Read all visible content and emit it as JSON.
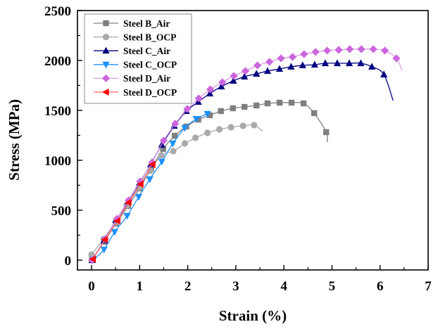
{
  "chart_data": {
    "type": "line",
    "title": "",
    "xlabel": "Strain (%)",
    "ylabel": "Stress (MPa)",
    "xlim": [
      -0.3,
      7
    ],
    "ylim": [
      -100,
      2500
    ],
    "xticks": [
      0,
      1,
      2,
      3,
      4,
      5,
      6,
      7
    ],
    "yticks": [
      0,
      500,
      1000,
      1500,
      2000,
      2500
    ],
    "xtick_labels": [
      "0",
      "1",
      "2",
      "3",
      "4",
      "5",
      "6",
      "7"
    ],
    "ytick_labels": [
      "0",
      "500",
      "1000",
      "1500",
      "2000",
      "2500"
    ],
    "grid": false,
    "legend_position": "top-left",
    "series": [
      {
        "name": "Steel B_Air",
        "color": "#7f7f7f",
        "line_color": "#7f7f7f",
        "marker": "square",
        "x": [
          0.01,
          0.26,
          0.51,
          0.76,
          1.0,
          1.24,
          1.49,
          1.73,
          1.97,
          2.22,
          2.46,
          2.69,
          2.94,
          3.18,
          3.43,
          3.66,
          3.91,
          4.16,
          4.41,
          4.63,
          4.88
        ],
        "y": [
          7,
          183,
          366,
          542,
          718,
          915,
          1113,
          1246,
          1338,
          1408,
          1451,
          1493,
          1521,
          1535,
          1549,
          1570,
          1577,
          1577,
          1570,
          1472,
          1282
        ],
        "end": [
          4.9,
          1183
        ]
      },
      {
        "name": "Steel B_OCP",
        "color": "#aaaaaa",
        "line_color": "#aaaaaa",
        "marker": "circle",
        "x": [
          0.0,
          0.25,
          0.5,
          0.73,
          0.98,
          1.22,
          1.45,
          1.7,
          1.94,
          2.16,
          2.41,
          2.66,
          2.9,
          3.15,
          3.38
        ],
        "y": [
          56,
          211,
          380,
          549,
          725,
          894,
          1049,
          1092,
          1169,
          1225,
          1275,
          1310,
          1331,
          1345,
          1352
        ],
        "end": [
          3.56,
          1289
        ]
      },
      {
        "name": "Steel C_Air",
        "color": "#000080",
        "line_color": "#000080",
        "marker": "triangle-up",
        "x": [
          0.01,
          0.26,
          0.51,
          0.76,
          1.0,
          1.23,
          1.46,
          1.72,
          1.97,
          2.22,
          2.46,
          2.7,
          2.95,
          3.18,
          3.43,
          3.66,
          3.91,
          4.15,
          4.39,
          4.64,
          4.86,
          5.11,
          5.36,
          5.6,
          5.83,
          6.08
        ],
        "y": [
          0,
          197,
          401,
          585,
          775,
          958,
          1155,
          1345,
          1493,
          1585,
          1669,
          1739,
          1796,
          1838,
          1866,
          1894,
          1915,
          1937,
          1951,
          1958,
          1972,
          1972,
          1972,
          1972,
          1937,
          1859
        ],
        "end": [
          6.27,
          1599
        ]
      },
      {
        "name": "Steel C_OCP",
        "color": "#1e90ff",
        "line_color": "#1e90ff",
        "marker": "triangle-down",
        "x": [
          0.04,
          0.26,
          0.48,
          0.74,
          0.98,
          1.21,
          1.46,
          1.69,
          1.94,
          2.18,
          2.41
        ],
        "y": [
          5,
          106,
          282,
          444,
          634,
          810,
          986,
          1169,
          1324,
          1415,
          1465
        ],
        "end": [
          2.45,
          1479
        ]
      },
      {
        "name": "Steel D_Air",
        "color": "#cc66dd",
        "line_color": "#dd99e6",
        "marker": "diamond",
        "x": [
          0.01,
          0.28,
          0.53,
          0.77,
          1.01,
          1.26,
          1.5,
          1.74,
          1.99,
          2.23,
          2.47,
          2.72,
          2.96,
          3.2,
          3.45,
          3.7,
          3.94,
          4.18,
          4.42,
          4.66,
          4.9,
          5.14,
          5.37,
          5.61,
          5.86,
          6.1,
          6.34
        ],
        "y": [
          0,
          211,
          415,
          599,
          789,
          979,
          1197,
          1366,
          1514,
          1620,
          1711,
          1782,
          1845,
          1894,
          1951,
          1986,
          2021,
          2035,
          2063,
          2085,
          2099,
          2106,
          2113,
          2113,
          2113,
          2099,
          2021
        ],
        "end": [
          6.46,
          1901
        ]
      },
      {
        "name": "Steel D_OCP",
        "color": "#ff0000",
        "line_color": "#ff6666",
        "marker": "triangle-left",
        "x": [
          0.03,
          0.28,
          0.54,
          0.77,
          1.02,
          1.27
        ],
        "y": [
          10,
          204,
          394,
          577,
          761,
          958
        ],
        "end": [
          1.31,
          986
        ]
      }
    ]
  }
}
